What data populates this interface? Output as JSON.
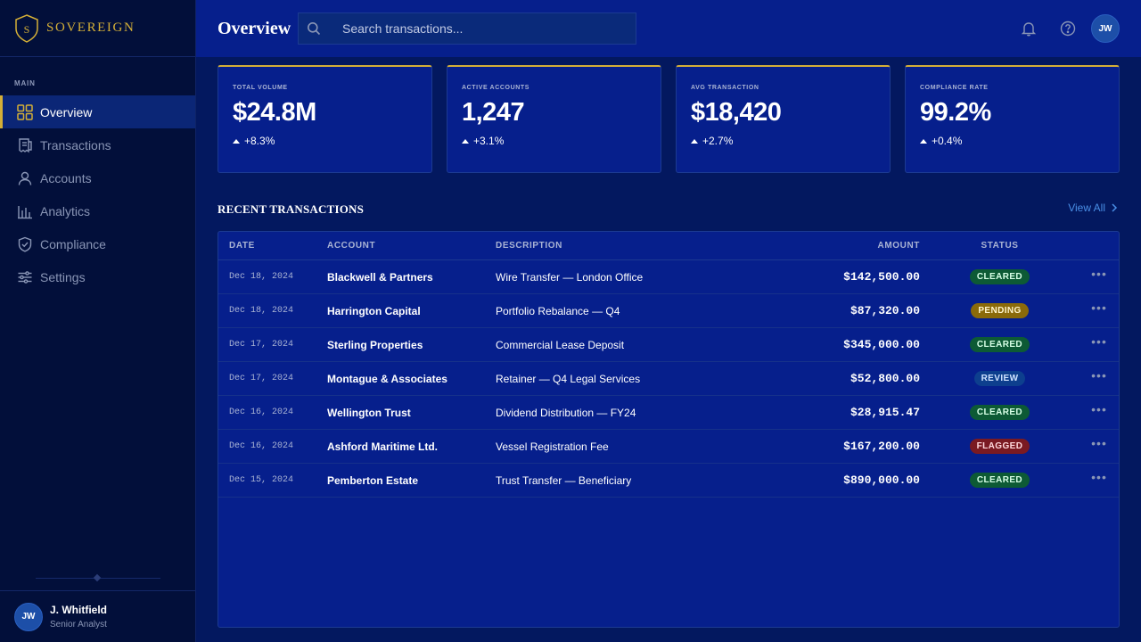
{
  "brand": {
    "name": "SOVEREIGN",
    "logo_letter": "S"
  },
  "sidebar": {
    "section_label": "MAIN",
    "items": [
      {
        "label": "Overview",
        "icon": "grid-icon",
        "active": true
      },
      {
        "label": "Transactions",
        "icon": "receipt-icon",
        "active": false
      },
      {
        "label": "Accounts",
        "icon": "user-icon",
        "active": false
      },
      {
        "label": "Analytics",
        "icon": "bar-chart-icon",
        "active": false
      },
      {
        "label": "Compliance",
        "icon": "shield-check-icon",
        "active": false
      },
      {
        "label": "Settings",
        "icon": "sliders-icon",
        "active": false
      }
    ],
    "user": {
      "initials": "JW",
      "name": "J. Whitfield",
      "role": "Senior Analyst"
    }
  },
  "header": {
    "title": "Overview",
    "search_placeholder": "Search transactions...",
    "avatar_initials": "JW"
  },
  "kpis": [
    {
      "label": "TOTAL VOLUME",
      "value": "$24.8M",
      "change": "+8.3%"
    },
    {
      "label": "ACTIVE ACCOUNTS",
      "value": "1,247",
      "change": "+3.1%"
    },
    {
      "label": "AVG TRANSACTION",
      "value": "$18,420",
      "change": "+2.7%"
    },
    {
      "label": "COMPLIANCE RATE",
      "value": "99.2%",
      "change": "+0.4%"
    }
  ],
  "transactions": {
    "title": "RECENT TRANSACTIONS",
    "view_all": "View All",
    "columns": {
      "date": "DATE",
      "account": "ACCOUNT",
      "description": "DESCRIPTION",
      "amount": "AMOUNT",
      "status": "STATUS"
    },
    "rows": [
      {
        "date": "Dec 18, 2024",
        "account": "Blackwell & Partners",
        "description": "Wire Transfer — London Office",
        "amount": "$142,500.00",
        "status": "CLEARED"
      },
      {
        "date": "Dec 18, 2024",
        "account": "Harrington Capital",
        "description": "Portfolio Rebalance — Q4",
        "amount": "$87,320.00",
        "status": "PENDING"
      },
      {
        "date": "Dec 17, 2024",
        "account": "Sterling Properties",
        "description": "Commercial Lease Deposit",
        "amount": "$345,000.00",
        "status": "CLEARED"
      },
      {
        "date": "Dec 17, 2024",
        "account": "Montague & Associates",
        "description": "Retainer — Q4 Legal Services",
        "amount": "$52,800.00",
        "status": "REVIEW"
      },
      {
        "date": "Dec 16, 2024",
        "account": "Wellington Trust",
        "description": "Dividend Distribution — FY24",
        "amount": "$28,915.47",
        "status": "CLEARED"
      },
      {
        "date": "Dec 16, 2024",
        "account": "Ashford Maritime Ltd.",
        "description": "Vessel Registration Fee",
        "amount": "$167,200.00",
        "status": "FLAGGED"
      },
      {
        "date": "Dec 15, 2024",
        "account": "Pemberton Estate",
        "description": "Trust Transfer — Beneficiary",
        "amount": "$890,000.00",
        "status": "CLEARED"
      }
    ]
  },
  "colors": {
    "accent_gold": "#d4af37",
    "link_blue": "#4a8fe6"
  }
}
